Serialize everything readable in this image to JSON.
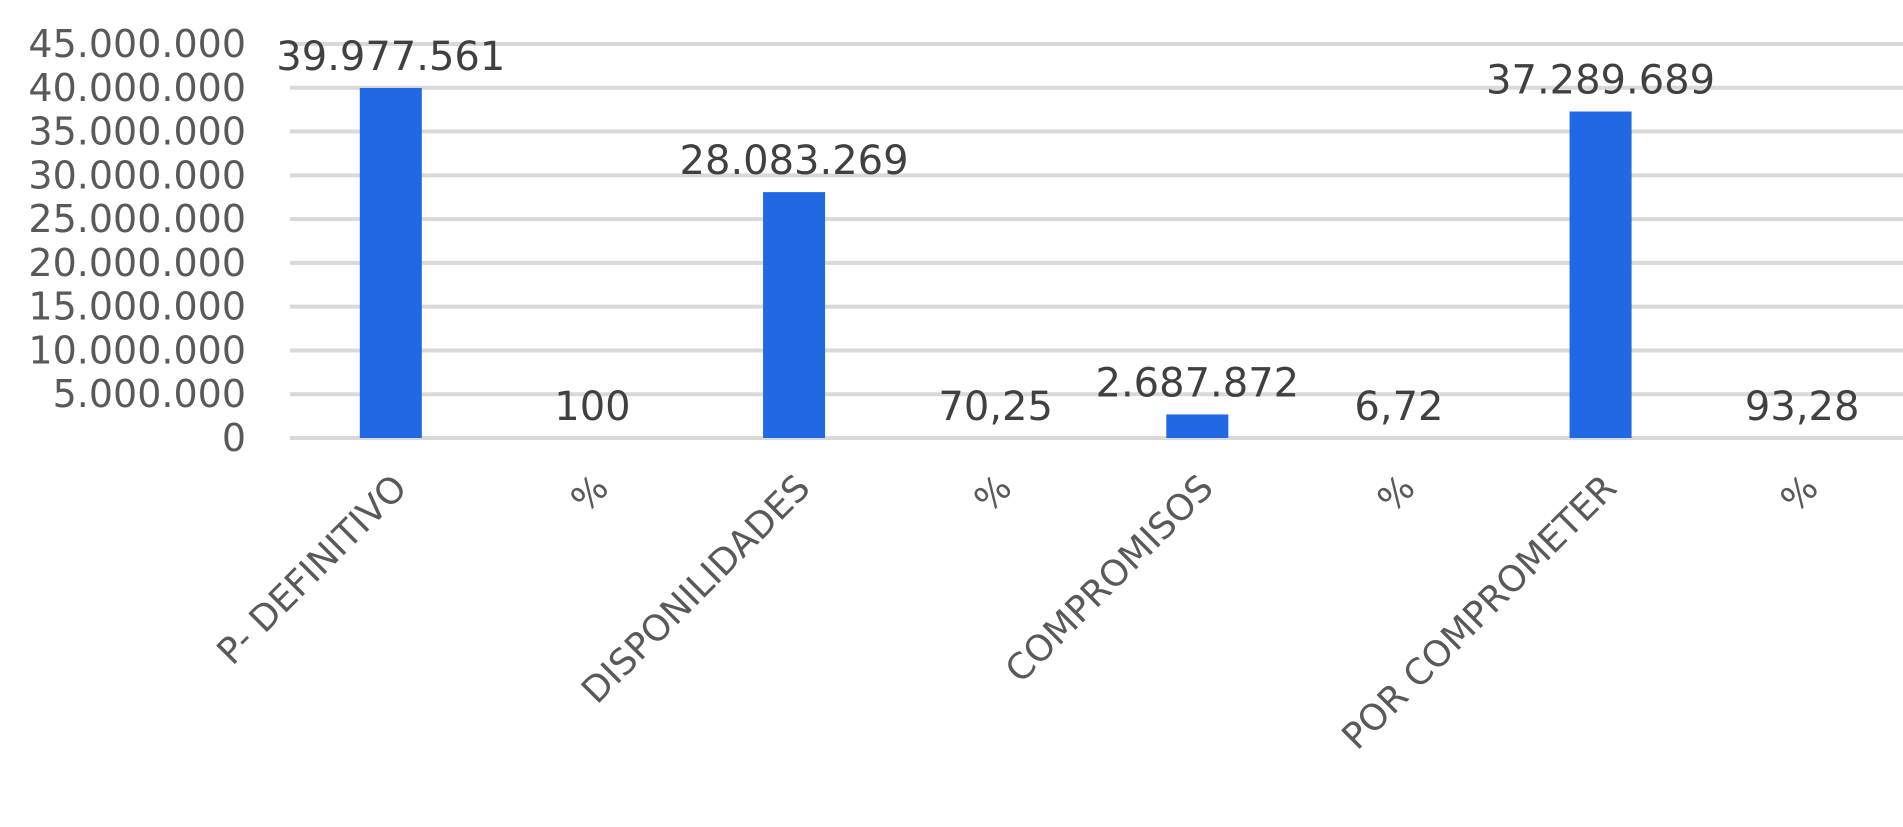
{
  "chart_data": {
    "type": "bar",
    "title": "",
    "xlabel": "",
    "ylabel": "",
    "categories": [
      "P- DEFINITIVO",
      "%",
      "DISPONILIDADES",
      "%",
      "COMPROMISOS",
      "%",
      "POR COMPROMETER",
      "%"
    ],
    "values": [
      39977561,
      100,
      28083269,
      70.25,
      2687872,
      6.72,
      37289689,
      93.28
    ],
    "data_labels": [
      "39.977.561",
      "100",
      "28.083.269",
      "70,25",
      "2.687.872",
      "6,72",
      "37.289.689",
      "93,28"
    ],
    "ylim": [
      0,
      45000000
    ],
    "yticks": [
      0,
      5000000,
      10000000,
      15000000,
      20000000,
      25000000,
      30000000,
      35000000,
      40000000,
      45000000
    ],
    "ytick_labels": [
      "0",
      "5.000.000",
      "10.000.000",
      "15.000.000",
      "20.000.000",
      "25.000.000",
      "30.000.000",
      "35.000.000",
      "40.000.000",
      "45.000.000"
    ],
    "grid": true,
    "legend": "none",
    "bar_color": "#2168e4",
    "grid_color": "#d9d9d9",
    "text_color": "#595959"
  }
}
